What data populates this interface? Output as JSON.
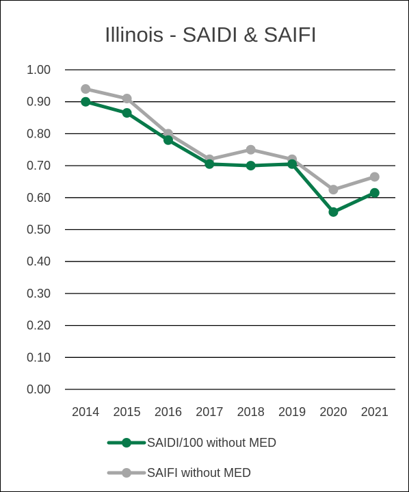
{
  "chart_data": {
    "type": "line",
    "title": "Illinois - SAIDI & SAIFI",
    "xlabel": "",
    "ylabel": "",
    "categories": [
      "2014",
      "2015",
      "2016",
      "2017",
      "2018",
      "2019",
      "2020",
      "2021"
    ],
    "y_ticks": [
      "0.00",
      "0.10",
      "0.20",
      "0.30",
      "0.40",
      "0.50",
      "0.60",
      "0.70",
      "0.80",
      "0.90",
      "1.00"
    ],
    "ylim": [
      0,
      1.0
    ],
    "grid": true,
    "legend_position": "bottom",
    "series": [
      {
        "name": "SAIDI/100 without MED",
        "color": "#087a4a",
        "values": [
          0.9,
          0.865,
          0.78,
          0.705,
          0.7,
          0.705,
          0.555,
          0.615
        ]
      },
      {
        "name": "SAIFI without MED",
        "color": "#a6a6a6",
        "values": [
          0.94,
          0.91,
          0.8,
          0.72,
          0.75,
          0.72,
          0.625,
          0.665
        ]
      }
    ]
  }
}
